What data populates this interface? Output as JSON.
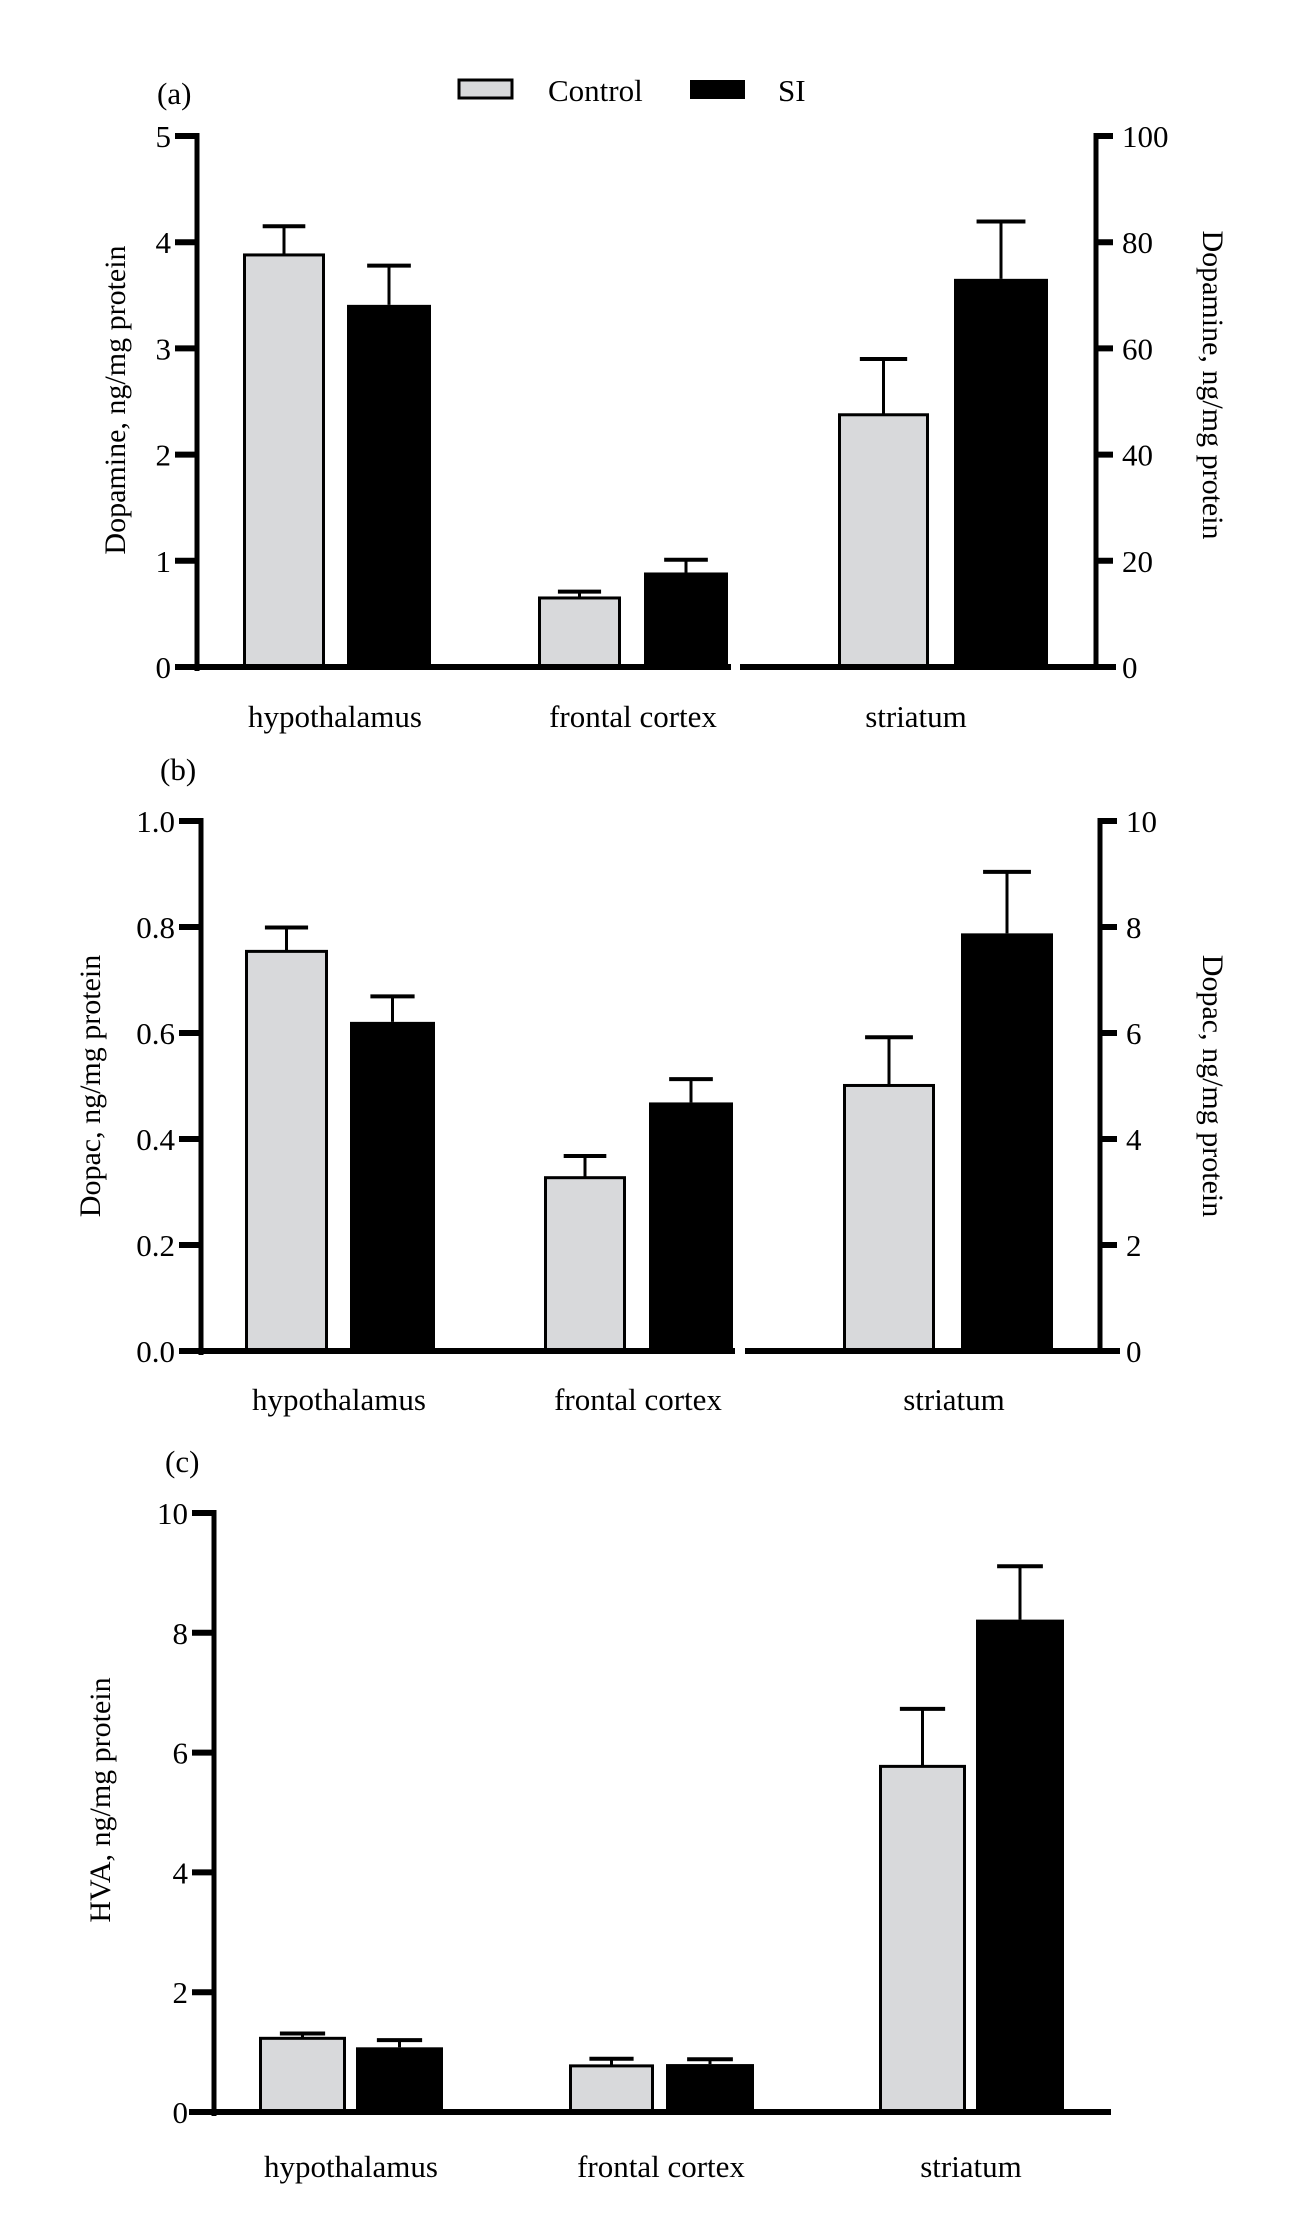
{
  "legend": {
    "items": [
      {
        "label": "Control",
        "color": "#d8d9db"
      },
      {
        "label": "SI",
        "color": "#000000"
      }
    ]
  },
  "chart_data": [
    {
      "type": "bar",
      "panel_label": "(a)",
      "categories": [
        "hypothalamus",
        "frontal cortex",
        "striatum"
      ],
      "ylabel": "Dopamine, ng/mg protein",
      "ylim": [
        0,
        5
      ],
      "yticks": [
        "0",
        "1",
        "2",
        "3",
        "4",
        "5"
      ],
      "y2label": "Dopamine, ng/mg protein",
      "y2lim": [
        0,
        100
      ],
      "y2ticks": [
        "0",
        "20",
        "40",
        "60",
        "80",
        "100"
      ],
      "y2_applies_to": [
        "striatum"
      ],
      "grid": false,
      "series": [
        {
          "name": "Control",
          "values": [
            3.88,
            0.65,
            47.5
          ],
          "errors": [
            0.27,
            0.06,
            10.5
          ]
        },
        {
          "name": "SI",
          "values": [
            3.41,
            0.89,
            73.1
          ],
          "errors": [
            0.37,
            0.12,
            10.8
          ]
        }
      ]
    },
    {
      "type": "bar",
      "panel_label": "(b)",
      "categories": [
        "hypothalamus",
        "frontal cortex",
        "striatum"
      ],
      "ylabel": "Dopac, ng/mg protein",
      "ylim": [
        0,
        1.0
      ],
      "yticks": [
        "0.0",
        "0.2",
        "0.4",
        "0.6",
        "0.8",
        "1.0"
      ],
      "y2label": "Dopac, ng/mg protein",
      "y2lim": [
        0,
        10
      ],
      "y2ticks": [
        "0",
        "2",
        "4",
        "6",
        "8",
        "10"
      ],
      "y2_applies_to": [
        "striatum"
      ],
      "grid": false,
      "series": [
        {
          "name": "Control",
          "values": [
            0.754,
            0.327,
            5.01
          ],
          "errors": [
            0.045,
            0.041,
            0.91
          ]
        },
        {
          "name": "SI",
          "values": [
            0.621,
            0.469,
            7.88
          ],
          "errors": [
            0.048,
            0.044,
            1.16
          ]
        }
      ]
    },
    {
      "type": "bar",
      "panel_label": "(c)",
      "categories": [
        "hypothalamus",
        "frontal cortex",
        "striatum"
      ],
      "ylabel": "HVA, ng/mg protein",
      "ylim": [
        0,
        10
      ],
      "yticks": [
        "0",
        "2",
        "4",
        "6",
        "8",
        "10"
      ],
      "grid": false,
      "series": [
        {
          "name": "Control",
          "values": [
            1.23,
            0.77,
            5.77
          ],
          "errors": [
            0.08,
            0.12,
            0.96
          ]
        },
        {
          "name": "SI",
          "values": [
            1.08,
            0.8,
            8.22
          ],
          "errors": [
            0.12,
            0.08,
            0.89
          ]
        }
      ]
    }
  ]
}
